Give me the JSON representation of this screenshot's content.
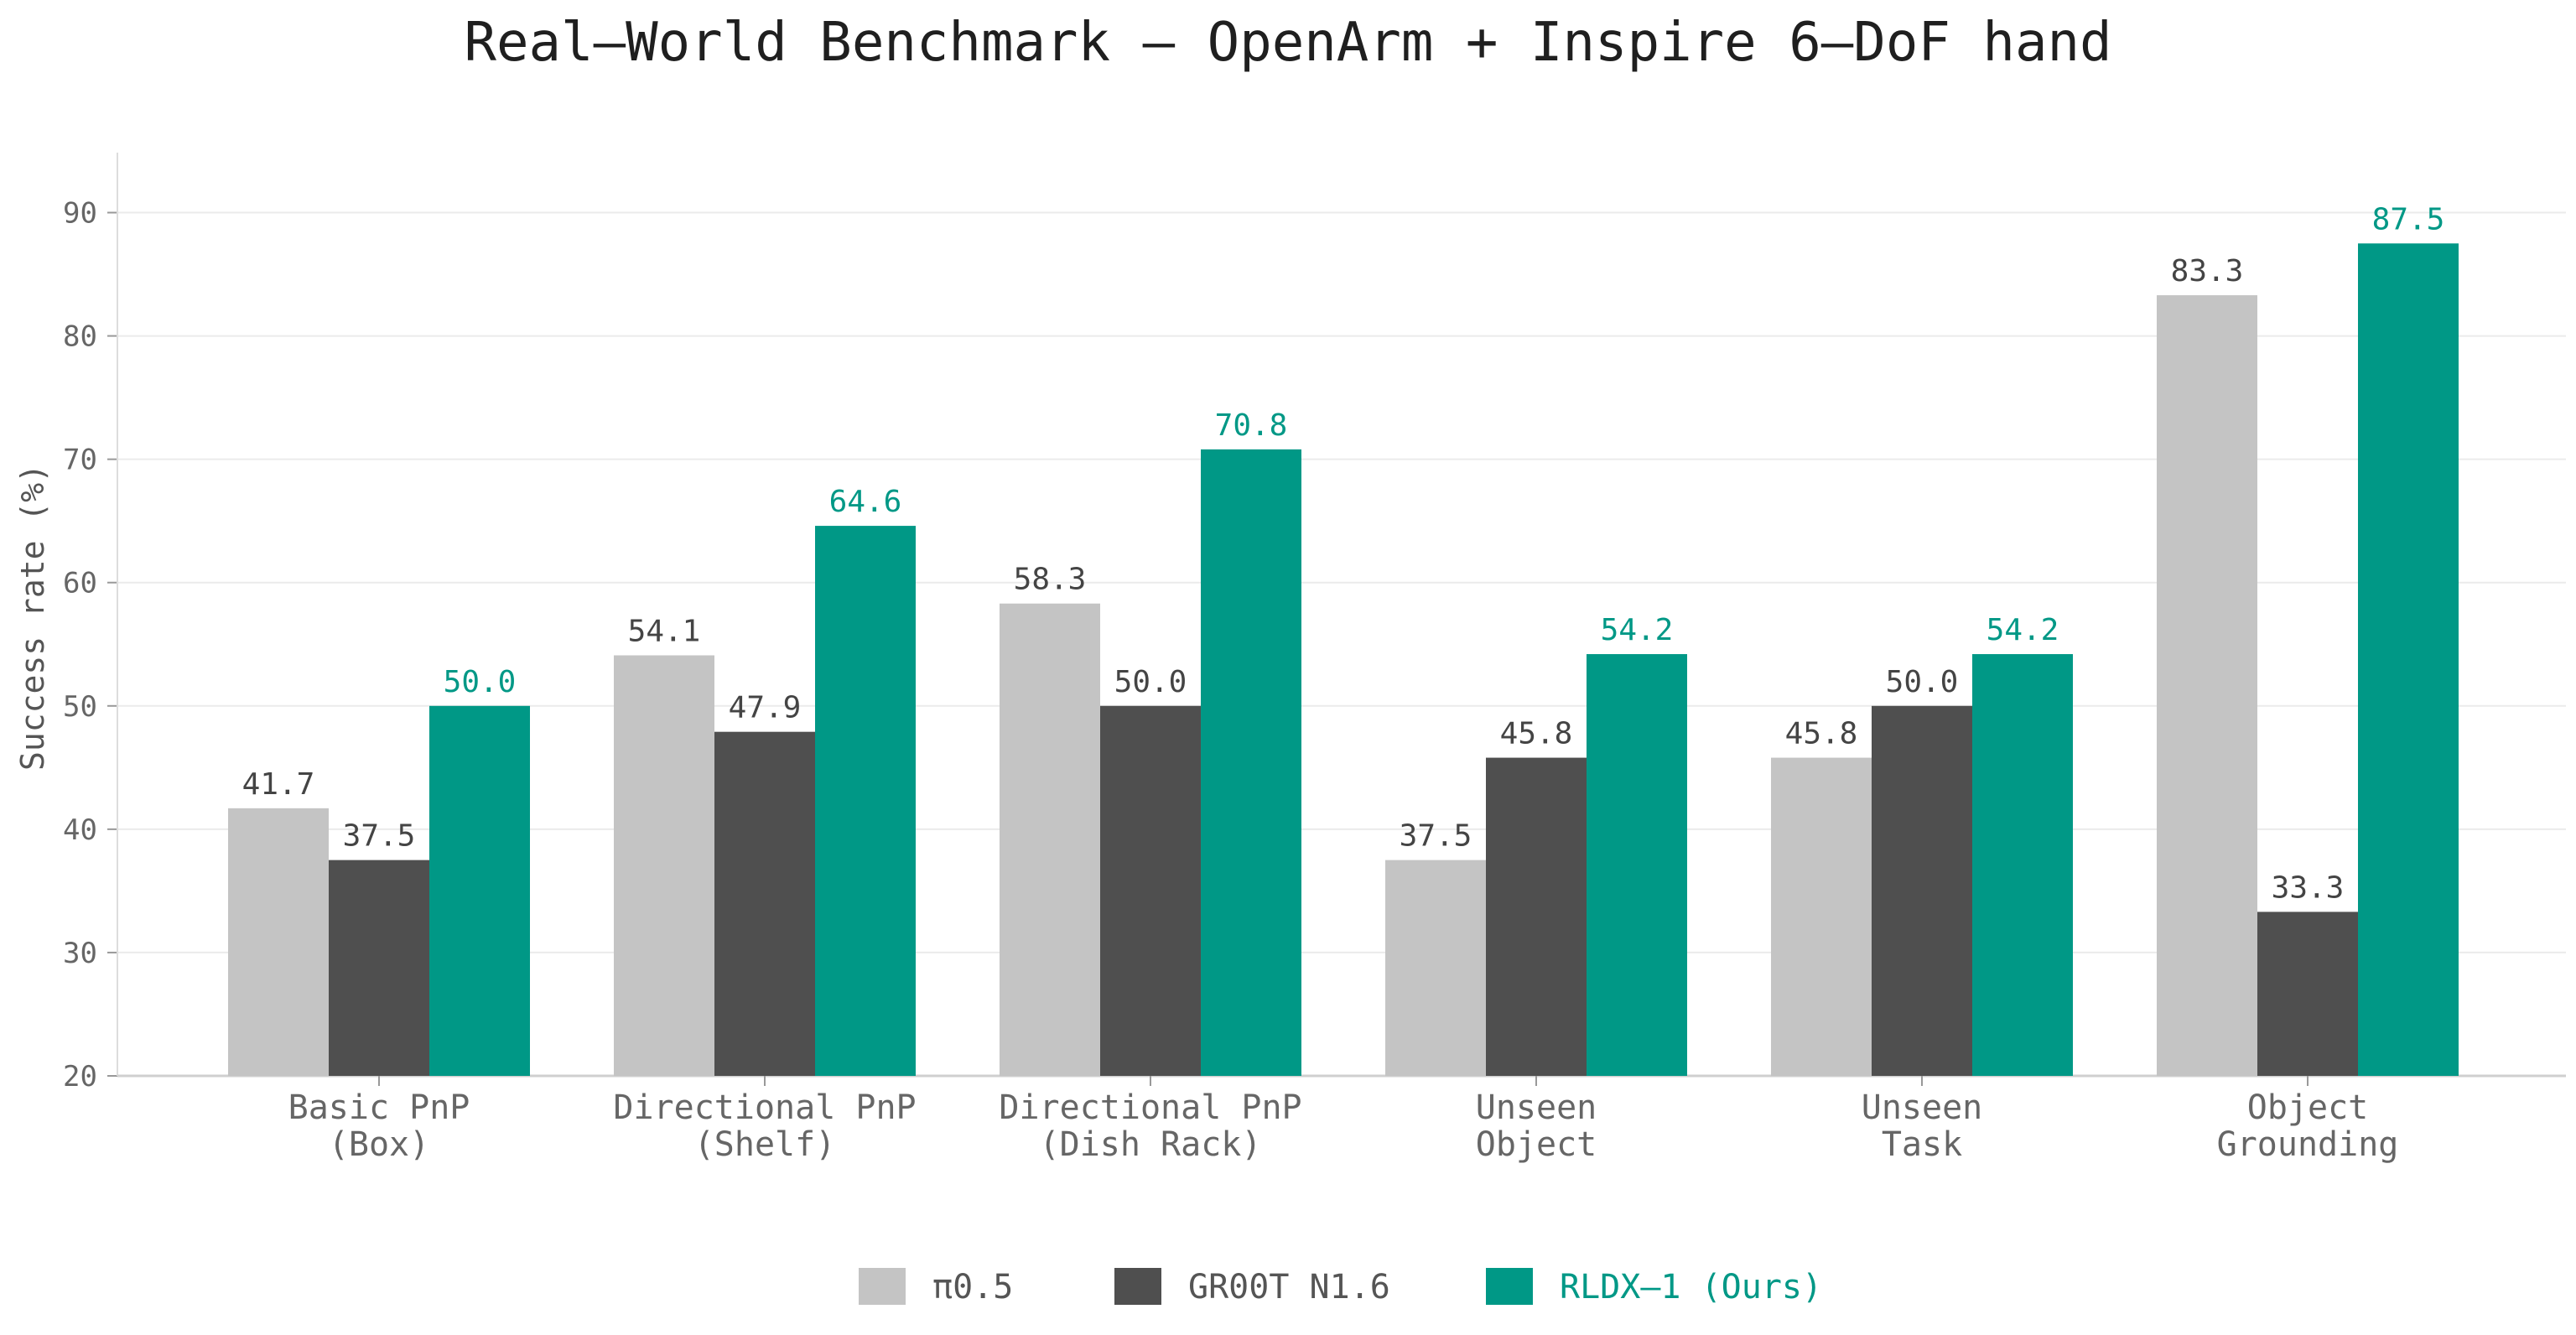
{
  "chart_data": {
    "type": "bar",
    "title": "Real–World Benchmark — OpenArm + Inspire 6–DoF hand",
    "xlabel": "",
    "ylabel": "Success rate (%)",
    "ylim": [
      20,
      95
    ],
    "yticks": [
      20,
      30,
      40,
      50,
      60,
      70,
      80,
      90
    ],
    "grid": "horizontal",
    "legend_position": "bottom-center",
    "categories": [
      [
        "Basic PnP",
        "(Box)"
      ],
      [
        "Directional PnP",
        "(Shelf)"
      ],
      [
        "Directional PnP",
        "(Dish Rack)"
      ],
      [
        "Unseen",
        "Object"
      ],
      [
        "Unseen",
        "Task"
      ],
      [
        "Object",
        "Grounding"
      ]
    ],
    "series": [
      {
        "name": "π0.5",
        "color": "#c4c4c4",
        "label_color": "#444444",
        "values": [
          41.7,
          54.1,
          58.3,
          37.5,
          45.8,
          83.3
        ]
      },
      {
        "name": "GR00T N1.6",
        "color": "#4f4f4f",
        "label_color": "#444444",
        "values": [
          37.5,
          47.9,
          50.0,
          45.8,
          50.0,
          33.3
        ]
      },
      {
        "name": "RLDX–1 (Ours)",
        "color": "#009886",
        "label_color": "#009886",
        "values": [
          50.0,
          64.6,
          70.8,
          54.2,
          54.2,
          87.5
        ]
      }
    ]
  }
}
